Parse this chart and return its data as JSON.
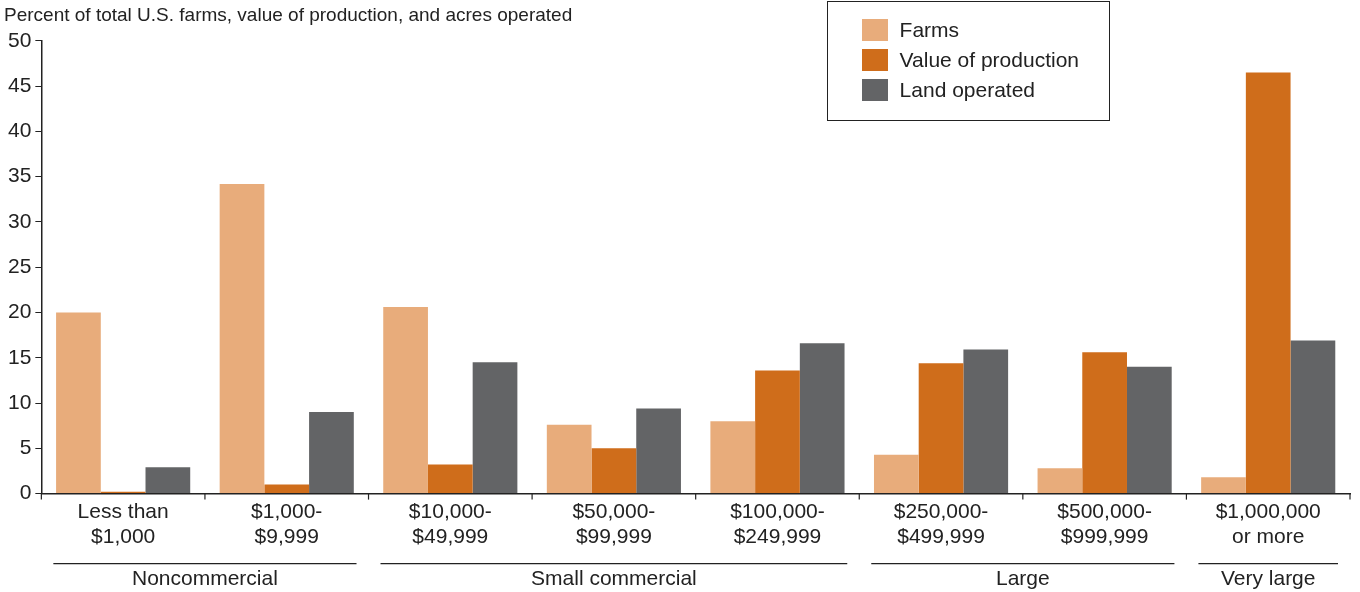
{
  "chart_data": {
    "type": "bar",
    "title": "Percent of total U.S. farms, value of production, and acres operated",
    "categories": [
      "Less than\n$1,000",
      "$1,000-\n$9,999",
      "$10,000-\n$49,999",
      "$50,000-\n$99,999",
      "$100,000-\n$249,999",
      "$250,000-\n$499,999",
      "$500,000-\n$999,999",
      "$1,000,000\nor more"
    ],
    "series": [
      {
        "name": "Farms",
        "color": "#e8ac7b",
        "values": [
          20,
          34.2,
          20.6,
          7.6,
          8.0,
          4.3,
          2.8,
          1.8
        ]
      },
      {
        "name": "Value of production",
        "color": "#cf6d1b",
        "values": [
          0.2,
          1.0,
          3.2,
          5.0,
          13.6,
          14.4,
          15.6,
          46.5
        ]
      },
      {
        "name": "Land operated",
        "color": "#636466",
        "values": [
          2.9,
          9.0,
          14.5,
          9.4,
          16.6,
          15.9,
          14.0,
          16.9
        ]
      }
    ],
    "ylim": [
      0,
      50
    ],
    "yticks": [
      0,
      5,
      10,
      15,
      20,
      25,
      30,
      35,
      40,
      45,
      50
    ],
    "grid": false,
    "legend": "top right",
    "annotations": [
      "Noncommercial",
      "Small commercial",
      "Large",
      "Very large"
    ]
  }
}
